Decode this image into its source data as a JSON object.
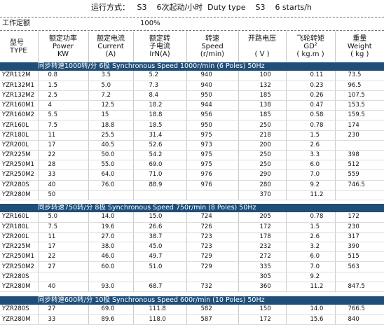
{
  "header": {
    "run_mode": "运行方式：   S3    6次起动/小时  Duty type    S3    6 starts/h",
    "condition_label": "工作定额",
    "condition_value": "100%"
  },
  "columns": [
    {
      "cn": "型号",
      "en": "TYPE",
      "unit": ""
    },
    {
      "cn": "额定功率",
      "en": "Power",
      "unit": "KW"
    },
    {
      "cn": "额定电流",
      "en": "Current",
      "unit": "(A)"
    },
    {
      "cn": "额定转",
      "en": "子电流",
      "unit": "IrN(A)"
    },
    {
      "cn": "转速",
      "en": "Speed",
      "unit": "(r/min)"
    },
    {
      "cn": "开路电压",
      "en": "",
      "unit": "( V )"
    },
    {
      "cn": "飞轮转矩",
      "en": "GD",
      "unit": "( kg.m  )",
      "sup": "2"
    },
    {
      "cn": "重量",
      "en": "Weight",
      "unit": "( kg )"
    }
  ],
  "sections": [
    {
      "title": "同步转速1000转/分  6极   Synchronous Speed 1000r/min (6 Poles)  50Hz",
      "rows": [
        [
          "YZR112M",
          "0.8",
          "3.5",
          "5.2",
          "940",
          "100",
          "0.11",
          "73.5"
        ],
        [
          "YZR132M1",
          "1.5",
          "5.0",
          "7.3",
          "940",
          "132",
          "0.23",
          "96.5"
        ],
        [
          "YZR132M2",
          "2.5",
          "7.2",
          "8.4",
          "950",
          "185",
          "0.26",
          "107.5"
        ],
        [
          "YZR160M1",
          "4",
          "12.5",
          "18.2",
          "944",
          "138",
          "0.47",
          "153.5"
        ],
        [
          "YZR160M2",
          "5.5",
          "15",
          "18.8",
          "956",
          "185",
          "0.58",
          "159.5"
        ],
        [
          "YZR160L",
          "7.5",
          "18.8",
          "18.5",
          "950",
          "250",
          "0.78",
          "174"
        ],
        [
          "YZR180L",
          "11",
          "25.5",
          "31.4",
          "975",
          "218",
          "1.5",
          "230"
        ],
        [
          "YZR200L",
          "17",
          "40.5",
          "52.6",
          "973",
          "200",
          "2.6",
          ""
        ],
        [
          "YZR225M",
          "22",
          "50.0",
          "54.2",
          "975",
          "250",
          "3.3",
          "398"
        ],
        [
          "YZR250M1",
          "28",
          "55.0",
          "69.0",
          "975",
          "250",
          "6.0",
          "512"
        ],
        [
          "YZR250M2",
          "33",
          "64.0",
          "71.0",
          "976",
          "290",
          "7.0",
          "559"
        ],
        [
          "YZR280S",
          "40",
          "76.0",
          "88.9",
          "976",
          "280",
          "9.2",
          "746.5"
        ],
        [
          "YZR280M",
          "50",
          "",
          "",
          "",
          "370",
          "11.2",
          ""
        ]
      ]
    },
    {
      "title": "同步转速750转/分  8极   Synchronous Speed 750r/min (8 Poles)  50Hz",
      "rows": [
        [
          "YZR160L",
          "5.0",
          "14.0",
          "15.0",
          "724",
          "205",
          "0.78",
          "172"
        ],
        [
          "YZR180L",
          "7.5",
          "19.6",
          "26.6",
          "726",
          "172",
          "1.5",
          "230"
        ],
        [
          "YZR200L",
          "11",
          "27.0",
          "38.7",
          "723",
          "178",
          "2.6",
          "317"
        ],
        [
          "YZR225M",
          "17",
          "38.0",
          "45.0",
          "723",
          "232",
          "3.2",
          "390"
        ],
        [
          "YZR250M1",
          "22",
          "46.0",
          "49.7",
          "729",
          "272",
          "6.0",
          "515"
        ],
        [
          "YZR250M2",
          "27",
          "60.0",
          "51.0",
          "729",
          "335",
          "7.0",
          "563"
        ],
        [
          "YZR280S",
          "",
          "",
          "",
          "",
          "305",
          "9.2",
          ""
        ],
        [
          "YZR280M",
          "40",
          "93.0",
          "68.7",
          "732",
          "360",
          "11.2",
          "847.5"
        ]
      ]
    },
    {
      "title": "同步转速600转/分  10极   Synchronous Speed 600r/min (10 Poles)  50Hz",
      "rows": [
        [
          "YZR280S",
          "27",
          "69.0",
          "111.8",
          "582",
          "150",
          "14.0",
          "766.5"
        ],
        [
          "YZR280M",
          "33",
          "89.6",
          "118.0",
          "587",
          "172",
          "15.6",
          "840"
        ]
      ]
    }
  ]
}
